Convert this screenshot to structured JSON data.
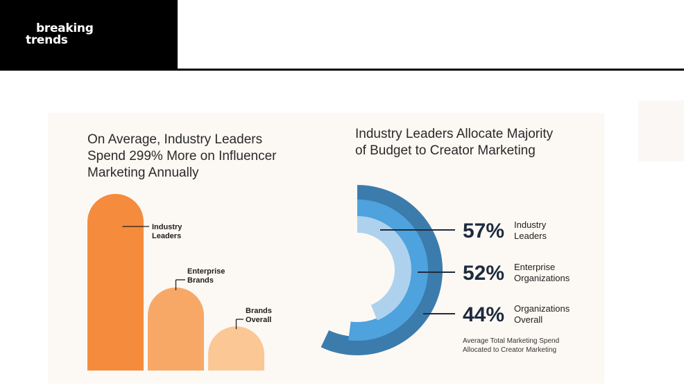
{
  "brand": {
    "line1": "breaking",
    "line2": "trends"
  },
  "colors": {
    "bar_1": "#f58b3c",
    "bar_2": "#f8a866",
    "bar_3": "#fbc795",
    "ring_1": "#3b7cac",
    "ring_2": "#4ea2dd",
    "ring_3": "#aed2ee",
    "panel_bg": "#fcf8f4"
  },
  "chart_data": [
    {
      "type": "bar",
      "title": "On Average, Industry Leaders\nSpend 299% More on Influencer\nMarketing Annually",
      "categories": [
        "Industry\nLeaders",
        "Enterprise\nBrands",
        "Brands\nOverall"
      ],
      "values": [
        100,
        47,
        25
      ],
      "value_scale": "relative, no axis printed",
      "grid": false,
      "legend": "none"
    },
    {
      "type": "pie",
      "variant": "concentric half-rings",
      "title": "Industry Leaders Allocate Majority\nof Budget to Creator Marketing",
      "series": [
        {
          "name": "Industry\nLeaders",
          "value": 57,
          "label": "57%"
        },
        {
          "name": "Enterprise\nOrganizations",
          "value": 52,
          "label": "52%"
        },
        {
          "name": "Organizations\nOverall",
          "value": 44,
          "label": "44%"
        }
      ],
      "note": "Average Total Marketing Spend\nAllocated to Creator Marketing"
    }
  ]
}
